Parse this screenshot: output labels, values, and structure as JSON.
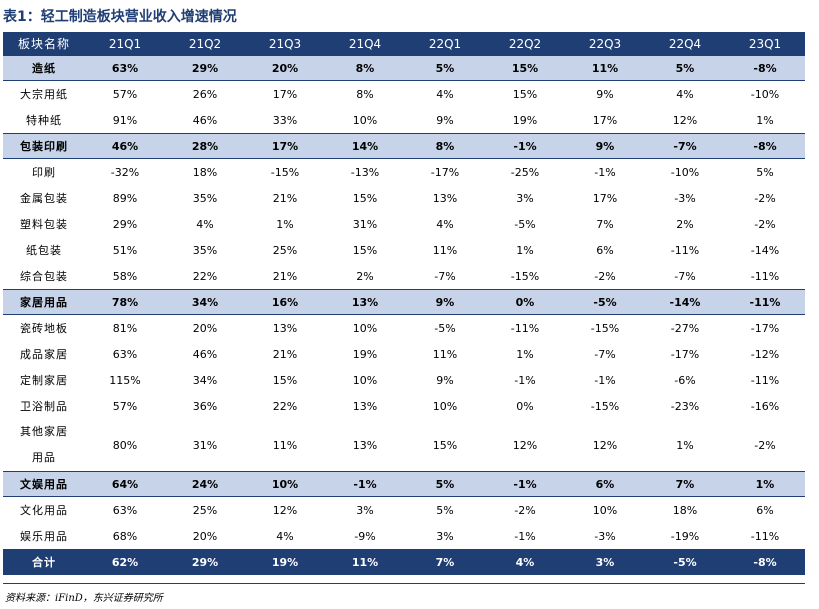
{
  "title": "表1：轻工制造板块营业收入增速情况",
  "header": [
    "板块名称",
    "21Q1",
    "21Q2",
    "21Q3",
    "21Q4",
    "22Q1",
    "22Q2",
    "22Q3",
    "22Q4",
    "23Q1"
  ],
  "rows": [
    {
      "label": "造纸",
      "values": [
        "63%",
        "29%",
        "20%",
        "8%",
        "5%",
        "15%",
        "11%",
        "5%",
        "-8%"
      ],
      "category": true
    },
    {
      "label": "大宗用纸",
      "values": [
        "57%",
        "26%",
        "17%",
        "8%",
        "4%",
        "15%",
        "9%",
        "4%",
        "-10%"
      ]
    },
    {
      "label": "特种纸",
      "values": [
        "91%",
        "46%",
        "33%",
        "10%",
        "9%",
        "19%",
        "17%",
        "12%",
        "1%"
      ]
    },
    {
      "label": "包装印刷",
      "values": [
        "46%",
        "28%",
        "17%",
        "14%",
        "8%",
        "-1%",
        "9%",
        "-7%",
        "-8%"
      ],
      "category": true
    },
    {
      "label": "印刷",
      "values": [
        "-32%",
        "18%",
        "-15%",
        "-13%",
        "-17%",
        "-25%",
        "-1%",
        "-10%",
        "5%"
      ]
    },
    {
      "label": "金属包装",
      "values": [
        "89%",
        "35%",
        "21%",
        "15%",
        "13%",
        "3%",
        "17%",
        "-3%",
        "-2%"
      ]
    },
    {
      "label": "塑料包装",
      "values": [
        "29%",
        "4%",
        "1%",
        "31%",
        "4%",
        "-5%",
        "7%",
        "2%",
        "-2%"
      ]
    },
    {
      "label": "纸包装",
      "values": [
        "51%",
        "35%",
        "25%",
        "15%",
        "11%",
        "1%",
        "6%",
        "-11%",
        "-14%"
      ]
    },
    {
      "label": "综合包装",
      "values": [
        "58%",
        "22%",
        "21%",
        "2%",
        "-7%",
        "-15%",
        "-2%",
        "-7%",
        "-11%"
      ]
    },
    {
      "label": "家居用品",
      "values": [
        "78%",
        "34%",
        "16%",
        "13%",
        "9%",
        "0%",
        "-5%",
        "-14%",
        "-11%"
      ],
      "category": true
    },
    {
      "label": "瓷砖地板",
      "values": [
        "81%",
        "20%",
        "13%",
        "10%",
        "-5%",
        "-11%",
        "-15%",
        "-27%",
        "-17%"
      ]
    },
    {
      "label": "成品家居",
      "values": [
        "63%",
        "46%",
        "21%",
        "19%",
        "11%",
        "1%",
        "-7%",
        "-17%",
        "-12%"
      ]
    },
    {
      "label": "定制家居",
      "values": [
        "115%",
        "34%",
        "15%",
        "10%",
        "9%",
        "-1%",
        "-1%",
        "-6%",
        "-11%"
      ]
    },
    {
      "label": "卫浴制品",
      "values": [
        "57%",
        "36%",
        "22%",
        "13%",
        "10%",
        "0%",
        "-15%",
        "-23%",
        "-16%"
      ]
    },
    {
      "label": "其他家居",
      "label2": "用品",
      "values": [
        "80%",
        "31%",
        "11%",
        "13%",
        "15%",
        "12%",
        "12%",
        "1%",
        "-2%"
      ]
    },
    {
      "label": "文娱用品",
      "values": [
        "64%",
        "24%",
        "10%",
        "-1%",
        "5%",
        "-1%",
        "6%",
        "7%",
        "1%"
      ],
      "category": true
    },
    {
      "label": "文化用品",
      "values": [
        "63%",
        "25%",
        "12%",
        "3%",
        "5%",
        "-2%",
        "10%",
        "18%",
        "6%"
      ]
    },
    {
      "label": "娱乐用品",
      "values": [
        "68%",
        "20%",
        "4%",
        "-9%",
        "3%",
        "-1%",
        "-3%",
        "-19%",
        "-11%"
      ]
    },
    {
      "label": "合计",
      "values": [
        "62%",
        "29%",
        "19%",
        "11%",
        "7%",
        "4%",
        "3%",
        "-5%",
        "-8%"
      ],
      "total": true
    }
  ],
  "source": "资料来源：iFinD，东兴证券研究所"
}
